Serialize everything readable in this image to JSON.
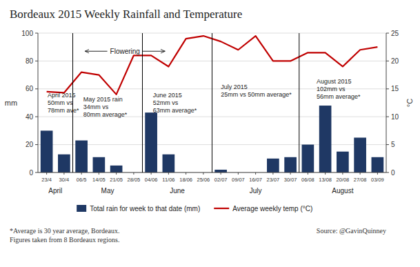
{
  "chart_data": {
    "type": "bar",
    "title": "Bordeaux 2015 Weekly Rainfall and Temperature",
    "categories": [
      "23/4",
      "30/4",
      "06/5",
      "14/05",
      "21/05",
      "28/05",
      "04/06",
      "11/06",
      "18/06",
      "25/06",
      "02/07",
      "09/07",
      "16/07",
      "23/07",
      "30/07",
      "06/08",
      "13/08",
      "20/08",
      "27/08",
      "03/09"
    ],
    "series": [
      {
        "name": "Total rain for week to that date (mm)",
        "type": "bar",
        "color": "#1F3864",
        "values": [
          30,
          13,
          23,
          11,
          5,
          0,
          43,
          13,
          0,
          0,
          2,
          0,
          0,
          10,
          11,
          20,
          48,
          15,
          25,
          11
        ]
      },
      {
        "name": "Average weekly temp (°C)",
        "type": "line",
        "color": "#C00000",
        "axis": "y2",
        "values": [
          14.5,
          14.3,
          18.0,
          17.5,
          14.0,
          21.0,
          21.0,
          19.0,
          24.0,
          24.5,
          23.5,
          22.0,
          24.5,
          20.0,
          20.0,
          21.5,
          21.5,
          19.0,
          22.0,
          22.5
        ]
      }
    ],
    "ylim": [
      0,
      100
    ],
    "yticks": [
      0,
      20,
      40,
      60,
      80,
      100
    ],
    "y2lim": [
      0,
      25
    ],
    "y2ticks": [
      0,
      5,
      10,
      15,
      20,
      25
    ],
    "ylabel": "mm",
    "y2label": "°C",
    "grid": true,
    "legend": "bottom",
    "month_labels": [
      {
        "text": "April",
        "x": 0.5
      },
      {
        "text": "May",
        "x": 3.5
      },
      {
        "text": "June",
        "x": 7.5
      },
      {
        "text": "July",
        "x": 12.0
      },
      {
        "text": "August",
        "x": 17.0
      }
    ],
    "dividers": [
      1.5,
      5.5,
      9.5,
      14.5
    ],
    "flowering": {
      "text": "Flowering",
      "x": 4.5,
      "y": 87,
      "x1": 2.2,
      "x2": 6.8
    },
    "annotations": [
      {
        "text": "April 2015\n50mm vs\n78mm ave*",
        "x": 0.05,
        "y": 58
      },
      {
        "text": "May 2015 rain\n34mm vs\n80mm average*",
        "x": 2.1,
        "y": 55
      },
      {
        "text": "June 2015\n52mm vs\n63mm average*",
        "x": 6.1,
        "y": 58
      },
      {
        "text": "July 2015\n25mm vs 50mm average*",
        "x": 10.0,
        "y": 64
      },
      {
        "text": "August 2015\n102mm vs\n56mm average*",
        "x": 15.5,
        "y": 68
      }
    ],
    "footnote": "*Average is 30 year average, Bordeaux.\nFigures taken from 8 Bordeaux regions.",
    "source": "Source: @GavinQuinney"
  }
}
